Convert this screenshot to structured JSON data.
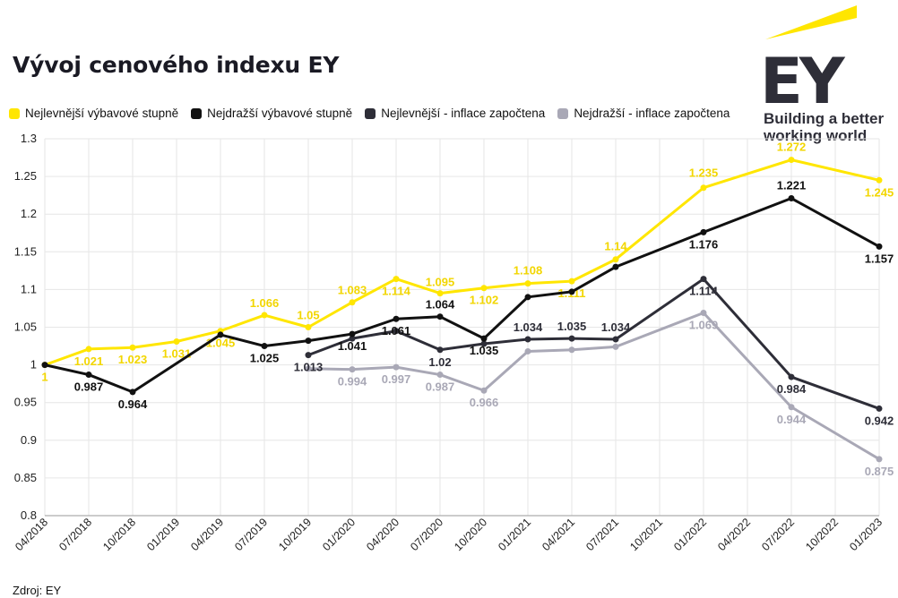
{
  "title": "Vývoj cenového indexu EY",
  "source": "Zdroj: EY",
  "logo": {
    "text": "EY",
    "tagline_line1": "Building a better",
    "tagline_line2": "working world"
  },
  "colors": {
    "yellow": "#FFE600",
    "black": "#111111",
    "dark": "#2E2E38",
    "light": "#A9A8B6"
  },
  "chart_data": {
    "type": "line",
    "x": [
      "04/2018",
      "07/2018",
      "10/2018",
      "01/2019",
      "04/2019",
      "07/2019",
      "10/2019",
      "01/2020",
      "04/2020",
      "07/2020",
      "10/2020",
      "01/2021",
      "04/2021",
      "07/2021",
      "10/2021",
      "01/2022",
      "04/2022",
      "07/2022",
      "10/2022",
      "01/2023"
    ],
    "ylim": [
      0.8,
      1.3
    ],
    "yticks": [
      "0.8",
      "0.85",
      "0.9",
      "0.95",
      "1",
      "1.05",
      "1.1",
      "1.15",
      "1.2",
      "1.25",
      "1.3"
    ],
    "grid": true,
    "legend_position": "top-left",
    "series": [
      {
        "name": "Nejlevnější výbavové stupně",
        "color": "#FFE600",
        "points": [
          [
            "04/2018",
            1
          ],
          [
            "07/2018",
            1.021
          ],
          [
            "10/2018",
            1.023
          ],
          [
            "01/2019",
            1.031
          ],
          [
            "04/2019",
            1.045
          ],
          [
            "07/2019",
            1.066
          ],
          [
            "10/2019",
            1.05
          ],
          [
            "01/2020",
            1.083
          ],
          [
            "04/2020",
            1.114
          ],
          [
            "07/2020",
            1.095
          ],
          [
            "10/2020",
            1.102
          ],
          [
            "01/2021",
            1.108
          ],
          [
            "04/2021",
            1.111
          ],
          [
            "07/2021",
            1.14
          ],
          [
            "01/2022",
            1.235
          ],
          [
            "07/2022",
            1.272
          ],
          [
            "01/2023",
            1.245
          ]
        ],
        "labels": [
          "1",
          "1.021",
          "1.023",
          "1.031",
          "1.045",
          "1.066",
          "1.05",
          "1.083",
          "1.114",
          "1.095",
          "1.102",
          "1.108",
          "1.111",
          "1.14",
          "1.235",
          "1.272",
          "1.245"
        ]
      },
      {
        "name": "Nejdražší výbavové stupně",
        "color": "#111111",
        "points": [
          [
            "04/2018",
            1
          ],
          [
            "07/2018",
            0.987
          ],
          [
            "10/2018",
            0.964
          ],
          [
            "04/2019",
            1.04
          ],
          [
            "07/2019",
            1.025
          ],
          [
            "10/2019",
            1.032
          ],
          [
            "01/2020",
            1.041
          ],
          [
            "04/2020",
            1.061
          ],
          [
            "07/2020",
            1.064
          ],
          [
            "10/2020",
            1.035
          ],
          [
            "01/2021",
            1.09
          ],
          [
            "04/2021",
            1.097
          ],
          [
            "07/2021",
            1.13
          ],
          [
            "01/2022",
            1.176
          ],
          [
            "07/2022",
            1.221
          ],
          [
            "01/2023",
            1.157
          ]
        ],
        "labels": [
          "",
          "0.987",
          "0.964",
          "",
          "1.025",
          "",
          "1.041",
          "1.061",
          "1.064",
          "1.035",
          "",
          "",
          "",
          "1.176",
          "1.221",
          "1.157"
        ]
      },
      {
        "name": "Nejlevnější - inflace započtena",
        "color": "#2E2E38",
        "points": [
          [
            "10/2019",
            1.013
          ],
          [
            "01/2020",
            1.035
          ],
          [
            "04/2020",
            1.045
          ],
          [
            "07/2020",
            1.02
          ],
          [
            "10/2020",
            1.028
          ],
          [
            "01/2021",
            1.034
          ],
          [
            "04/2021",
            1.035
          ],
          [
            "07/2021",
            1.034
          ],
          [
            "01/2022",
            1.114
          ],
          [
            "07/2022",
            0.984
          ],
          [
            "01/2023",
            0.942
          ]
        ],
        "labels": [
          "1.013",
          "",
          "",
          "1.02",
          "",
          "1.034",
          "1.035",
          "1.034",
          "1.114",
          "0.984",
          "0.942"
        ]
      },
      {
        "name": "Nejdražší - inflace započtena",
        "color": "#A9A8B6",
        "points": [
          [
            "10/2019",
            0.995
          ],
          [
            "01/2020",
            0.994
          ],
          [
            "04/2020",
            0.997
          ],
          [
            "07/2020",
            0.987
          ],
          [
            "10/2020",
            0.966
          ],
          [
            "01/2021",
            1.018
          ],
          [
            "04/2021",
            1.02
          ],
          [
            "07/2021",
            1.024
          ],
          [
            "01/2022",
            1.069
          ],
          [
            "07/2022",
            0.944
          ],
          [
            "01/2023",
            0.875
          ]
        ],
        "labels": [
          "",
          "0.994",
          "0.997",
          "0.987",
          "0.966",
          "",
          "",
          "",
          "1.069",
          "0.944",
          "0.875"
        ]
      }
    ]
  }
}
